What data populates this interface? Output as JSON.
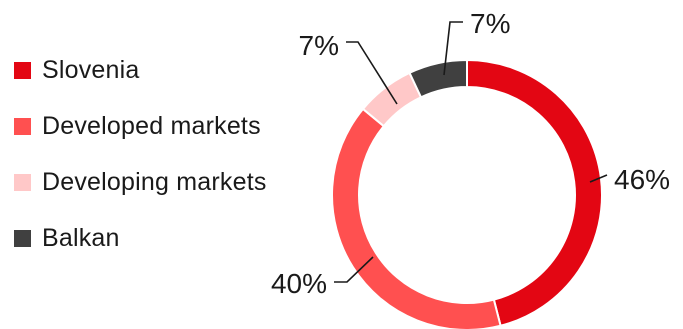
{
  "chart_data": {
    "type": "pie",
    "variant": "donut",
    "title": "",
    "categories": [
      "Slovenia",
      "Developed markets",
      "Developing markets",
      "Balkan"
    ],
    "values": [
      46,
      40,
      7,
      7
    ],
    "data_labels": [
      "46%",
      "40%",
      "7%",
      "7%"
    ],
    "colors": [
      "#e30613",
      "#ff5050",
      "#ffc8c8",
      "#404040"
    ],
    "legend_position": "left"
  }
}
